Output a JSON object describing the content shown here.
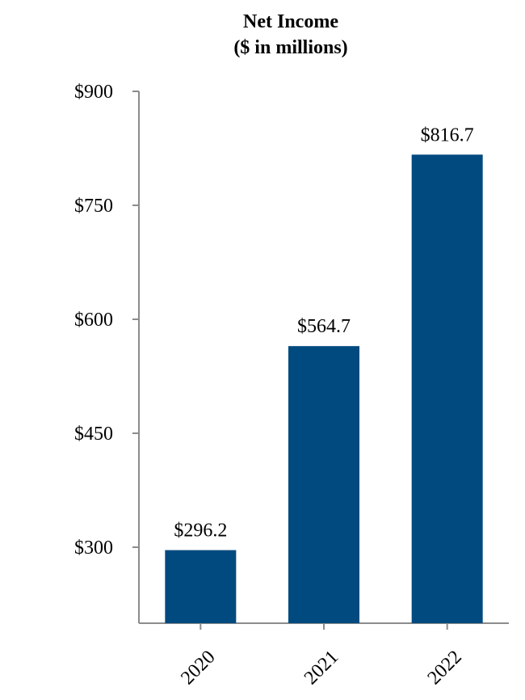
{
  "chart_data": {
    "type": "bar",
    "title": "Net Income",
    "subtitle": "($ in millions)",
    "categories": [
      "2020",
      "2021",
      "2022"
    ],
    "values": [
      296.2,
      564.7,
      816.7
    ],
    "data_labels": [
      "$296.2",
      "$564.7",
      "$816.7"
    ],
    "ylim": [
      200,
      900
    ],
    "yticks": [
      300,
      450,
      600,
      750,
      900
    ],
    "ytick_labels": [
      "$300",
      "$450",
      "$600",
      "$750",
      "$900"
    ],
    "xlabel": "",
    "ylabel": "",
    "grid": false,
    "legend": "none",
    "bar_color": "#004a7f",
    "axis_color": "#8c8c8c"
  }
}
